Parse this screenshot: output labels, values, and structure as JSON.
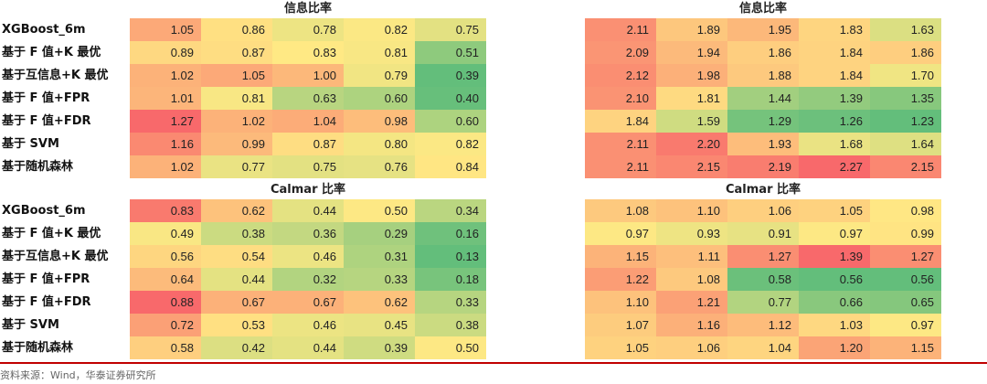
{
  "row_labels": [
    "XGBoost_6m",
    "基于 F 值+K 最优",
    "基于互信息+K 最优",
    "基于 F 值+FPR",
    "基于 F 值+FDR",
    "基于 SVM",
    "基于随机森林"
  ],
  "panels": [
    {
      "id": "tl",
      "title": "信息比率",
      "has_labels": true,
      "values": [
        [
          1.05,
          0.86,
          0.78,
          0.82,
          0.75
        ],
        [
          0.89,
          0.87,
          0.83,
          0.81,
          0.51
        ],
        [
          1.02,
          1.05,
          1.0,
          0.79,
          0.39
        ],
        [
          1.01,
          0.81,
          0.63,
          0.6,
          0.4
        ],
        [
          1.27,
          1.02,
          1.04,
          0.98,
          0.6
        ],
        [
          1.16,
          0.99,
          0.87,
          0.8,
          0.82
        ],
        [
          1.02,
          0.77,
          0.75,
          0.76,
          0.84
        ]
      ]
    },
    {
      "id": "tr",
      "title": "信息比率",
      "has_labels": false,
      "values": [
        [
          2.11,
          1.89,
          1.95,
          1.83,
          1.63
        ],
        [
          2.09,
          1.94,
          1.86,
          1.84,
          1.86
        ],
        [
          2.12,
          1.98,
          1.88,
          1.84,
          1.7
        ],
        [
          2.1,
          1.81,
          1.44,
          1.39,
          1.35
        ],
        [
          1.84,
          1.59,
          1.29,
          1.26,
          1.23
        ],
        [
          2.11,
          2.2,
          1.93,
          1.68,
          1.64
        ],
        [
          2.11,
          2.15,
          2.19,
          2.27,
          2.15
        ]
      ]
    },
    {
      "id": "bl",
      "title": "Calmar 比率",
      "has_labels": true,
      "values": [
        [
          0.83,
          0.62,
          0.44,
          0.5,
          0.34
        ],
        [
          0.49,
          0.38,
          0.36,
          0.29,
          0.16
        ],
        [
          0.56,
          0.54,
          0.46,
          0.31,
          0.13
        ],
        [
          0.64,
          0.44,
          0.32,
          0.33,
          0.18
        ],
        [
          0.88,
          0.67,
          0.67,
          0.62,
          0.33
        ],
        [
          0.72,
          0.53,
          0.46,
          0.45,
          0.38
        ],
        [
          0.58,
          0.42,
          0.44,
          0.39,
          0.5
        ]
      ]
    },
    {
      "id": "br",
      "title": "Calmar 比率",
      "has_labels": false,
      "values": [
        [
          1.08,
          1.1,
          1.06,
          1.05,
          0.98
        ],
        [
          0.97,
          0.93,
          0.91,
          0.97,
          0.99
        ],
        [
          1.15,
          1.11,
          1.27,
          1.39,
          1.27
        ],
        [
          1.22,
          1.08,
          0.58,
          0.56,
          0.56
        ],
        [
          1.1,
          1.21,
          0.77,
          0.66,
          0.65
        ],
        [
          1.07,
          1.16,
          1.12,
          1.03,
          0.97
        ],
        [
          1.05,
          1.06,
          1.04,
          1.2,
          1.15
        ]
      ]
    }
  ],
  "colors": {
    "high": "#f8696b",
    "mid": "#ffe984",
    "low": "#63be7b"
  },
  "footer": "资料来源：Wind，华泰证券研究所"
}
